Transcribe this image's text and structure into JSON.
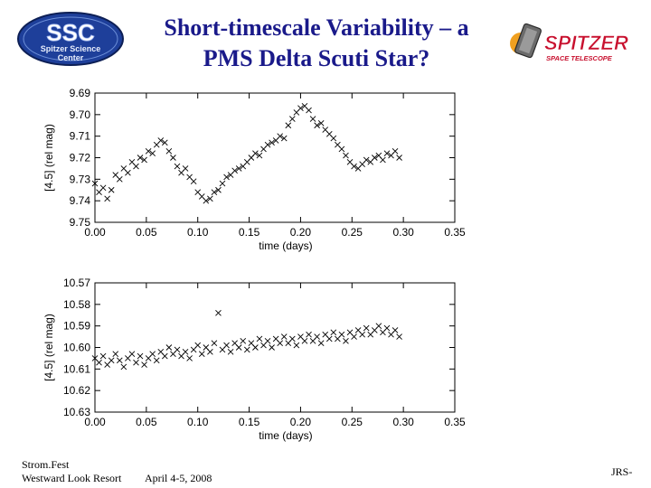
{
  "title_line1": "Short-timescale Variability – a",
  "title_line2": "PMS Delta Scuti Star?",
  "logos": {
    "ssc": {
      "big": "SSC",
      "line1": "Spitzer Science",
      "line2": "Center"
    },
    "spitzer": {
      "word": "SPITZER",
      "sub": "SPACE TELESCOPE"
    }
  },
  "footer": {
    "left_line1": "Strom.Fest",
    "left_line2": "Westward Look Resort",
    "date": "April 4-5, 2008",
    "right": "JRS-"
  },
  "colors": {
    "title": "#1a1a8a",
    "ssc_blue": "#1e3f9a",
    "spitzer_red": "#c8102e"
  },
  "chart_data": [
    {
      "type": "scatter",
      "xlabel": "time (days)",
      "ylabel": "[4.5] (rel mag)",
      "xlim": [
        0.0,
        0.35
      ],
      "ylim": [
        9.69,
        9.75
      ],
      "y_inverted": true,
      "xticks": [
        "0.00",
        "0.05",
        "0.10",
        "0.15",
        "0.20",
        "0.25",
        "0.30",
        "0.35"
      ],
      "yticks": [
        "9.69",
        "9.70",
        "9.71",
        "9.72",
        "9.73",
        "9.74",
        "9.75"
      ],
      "marker": "x",
      "points": [
        [
          0.0,
          9.732
        ],
        [
          0.004,
          9.736
        ],
        [
          0.008,
          9.734
        ],
        [
          0.012,
          9.739
        ],
        [
          0.016,
          9.735
        ],
        [
          0.02,
          9.728
        ],
        [
          0.024,
          9.73
        ],
        [
          0.028,
          9.725
        ],
        [
          0.032,
          9.727
        ],
        [
          0.036,
          9.722
        ],
        [
          0.04,
          9.724
        ],
        [
          0.044,
          9.72
        ],
        [
          0.048,
          9.721
        ],
        [
          0.052,
          9.717
        ],
        [
          0.056,
          9.718
        ],
        [
          0.06,
          9.714
        ],
        [
          0.064,
          9.712
        ],
        [
          0.068,
          9.713
        ],
        [
          0.072,
          9.717
        ],
        [
          0.076,
          9.72
        ],
        [
          0.08,
          9.724
        ],
        [
          0.084,
          9.727
        ],
        [
          0.088,
          9.725
        ],
        [
          0.092,
          9.729
        ],
        [
          0.096,
          9.731
        ],
        [
          0.1,
          9.736
        ],
        [
          0.104,
          9.738
        ],
        [
          0.108,
          9.74
        ],
        [
          0.112,
          9.739
        ],
        [
          0.116,
          9.736
        ],
        [
          0.12,
          9.735
        ],
        [
          0.124,
          9.732
        ],
        [
          0.128,
          9.729
        ],
        [
          0.132,
          9.728
        ],
        [
          0.136,
          9.726
        ],
        [
          0.14,
          9.725
        ],
        [
          0.144,
          9.724
        ],
        [
          0.148,
          9.722
        ],
        [
          0.152,
          9.72
        ],
        [
          0.156,
          9.718
        ],
        [
          0.16,
          9.719
        ],
        [
          0.164,
          9.716
        ],
        [
          0.168,
          9.714
        ],
        [
          0.172,
          9.713
        ],
        [
          0.176,
          9.712
        ],
        [
          0.18,
          9.71
        ],
        [
          0.184,
          9.711
        ],
        [
          0.188,
          9.705
        ],
        [
          0.192,
          9.702
        ],
        [
          0.196,
          9.699
        ],
        [
          0.2,
          9.697
        ],
        [
          0.204,
          9.696
        ],
        [
          0.208,
          9.698
        ],
        [
          0.212,
          9.702
        ],
        [
          0.216,
          9.705
        ],
        [
          0.22,
          9.704
        ],
        [
          0.224,
          9.707
        ],
        [
          0.228,
          9.709
        ],
        [
          0.232,
          9.711
        ],
        [
          0.236,
          9.714
        ],
        [
          0.24,
          9.716
        ],
        [
          0.244,
          9.719
        ],
        [
          0.248,
          9.722
        ],
        [
          0.252,
          9.724
        ],
        [
          0.256,
          9.725
        ],
        [
          0.26,
          9.723
        ],
        [
          0.264,
          9.721
        ],
        [
          0.268,
          9.722
        ],
        [
          0.272,
          9.72
        ],
        [
          0.276,
          9.719
        ],
        [
          0.28,
          9.721
        ],
        [
          0.284,
          9.718
        ],
        [
          0.288,
          9.719
        ],
        [
          0.292,
          9.717
        ],
        [
          0.296,
          9.72
        ]
      ]
    },
    {
      "type": "scatter",
      "xlabel": "time (days)",
      "ylabel": "[4.5] (rel mag)",
      "xlim": [
        0.0,
        0.35
      ],
      "ylim": [
        10.57,
        10.63
      ],
      "y_inverted": true,
      "xticks": [
        "0.00",
        "0.05",
        "0.10",
        "0.15",
        "0.20",
        "0.25",
        "0.30",
        "0.35"
      ],
      "yticks": [
        "10.57",
        "10.58",
        "10.59",
        "10.60",
        "10.61",
        "10.62",
        "10.63"
      ],
      "marker": "x",
      "points": [
        [
          0.0,
          10.605
        ],
        [
          0.004,
          10.607
        ],
        [
          0.008,
          10.604
        ],
        [
          0.012,
          10.608
        ],
        [
          0.016,
          10.606
        ],
        [
          0.02,
          10.603
        ],
        [
          0.024,
          10.606
        ],
        [
          0.028,
          10.609
        ],
        [
          0.032,
          10.605
        ],
        [
          0.036,
          10.603
        ],
        [
          0.04,
          10.607
        ],
        [
          0.044,
          10.604
        ],
        [
          0.048,
          10.608
        ],
        [
          0.052,
          10.605
        ],
        [
          0.056,
          10.603
        ],
        [
          0.06,
          10.606
        ],
        [
          0.064,
          10.602
        ],
        [
          0.068,
          10.604
        ],
        [
          0.072,
          10.6
        ],
        [
          0.076,
          10.603
        ],
        [
          0.08,
          10.601
        ],
        [
          0.084,
          10.604
        ],
        [
          0.088,
          10.602
        ],
        [
          0.092,
          10.605
        ],
        [
          0.096,
          10.601
        ],
        [
          0.1,
          10.599
        ],
        [
          0.104,
          10.603
        ],
        [
          0.108,
          10.6
        ],
        [
          0.112,
          10.602
        ],
        [
          0.116,
          10.598
        ],
        [
          0.12,
          10.584
        ],
        [
          0.124,
          10.601
        ],
        [
          0.128,
          10.599
        ],
        [
          0.132,
          10.602
        ],
        [
          0.136,
          10.598
        ],
        [
          0.14,
          10.6
        ],
        [
          0.144,
          10.597
        ],
        [
          0.148,
          10.601
        ],
        [
          0.152,
          10.598
        ],
        [
          0.156,
          10.6
        ],
        [
          0.16,
          10.596
        ],
        [
          0.164,
          10.599
        ],
        [
          0.168,
          10.597
        ],
        [
          0.172,
          10.6
        ],
        [
          0.176,
          10.596
        ],
        [
          0.18,
          10.598
        ],
        [
          0.184,
          10.595
        ],
        [
          0.188,
          10.598
        ],
        [
          0.192,
          10.596
        ],
        [
          0.196,
          10.599
        ],
        [
          0.2,
          10.595
        ],
        [
          0.204,
          10.597
        ],
        [
          0.208,
          10.594
        ],
        [
          0.212,
          10.597
        ],
        [
          0.216,
          10.595
        ],
        [
          0.22,
          10.598
        ],
        [
          0.224,
          10.594
        ],
        [
          0.228,
          10.596
        ],
        [
          0.232,
          10.593
        ],
        [
          0.236,
          10.596
        ],
        [
          0.24,
          10.594
        ],
        [
          0.244,
          10.597
        ],
        [
          0.248,
          10.593
        ],
        [
          0.252,
          10.595
        ],
        [
          0.256,
          10.592
        ],
        [
          0.26,
          10.594
        ],
        [
          0.264,
          10.591
        ],
        [
          0.268,
          10.594
        ],
        [
          0.272,
          10.592
        ],
        [
          0.276,
          10.59
        ],
        [
          0.28,
          10.593
        ],
        [
          0.284,
          10.591
        ],
        [
          0.288,
          10.594
        ],
        [
          0.292,
          10.592
        ],
        [
          0.296,
          10.595
        ]
      ]
    }
  ]
}
